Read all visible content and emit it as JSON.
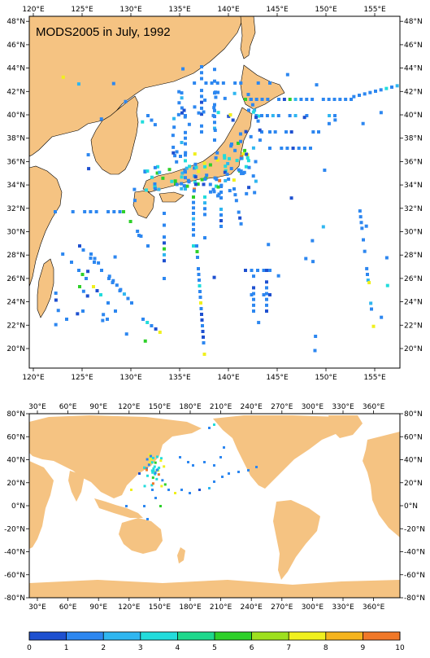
{
  "title": "MODS2005 in July, 1992",
  "top_map": {
    "lon_ticks": [
      "120°E",
      "125°E",
      "130°E",
      "135°E",
      "140°E",
      "145°E",
      "150°E",
      "155°E"
    ],
    "lat_ticks": [
      "20°N",
      "22°N",
      "24°N",
      "26°N",
      "28°N",
      "30°N",
      "32°N",
      "34°N",
      "36°N",
      "38°N",
      "40°N",
      "42°N",
      "44°N",
      "46°N",
      "48°N"
    ]
  },
  "bottom_map": {
    "lon_ticks": [
      "30°E",
      "60°E",
      "90°E",
      "120°E",
      "150°E",
      "180°E",
      "210°E",
      "240°E",
      "270°E",
      "300°E",
      "330°E",
      "360°E"
    ],
    "lat_ticks": [
      "80°N",
      "60°N",
      "40°N",
      "20°N",
      "0°N",
      "-20°N",
      "-40°N",
      "-60°N",
      "-80°N"
    ]
  },
  "colorbar": {
    "labels": [
      "0",
      "1",
      "2",
      "3",
      "4",
      "5",
      "6",
      "7",
      "8",
      "9",
      "10"
    ],
    "colors": [
      "#1e50d0",
      "#2d87f0",
      "#2fb6f0",
      "#22dcdc",
      "#1ed88c",
      "#2ed02a",
      "#9ee01e",
      "#f0f01e",
      "#f5b41e",
      "#f07828"
    ]
  },
  "land_color": "#f5c382"
}
